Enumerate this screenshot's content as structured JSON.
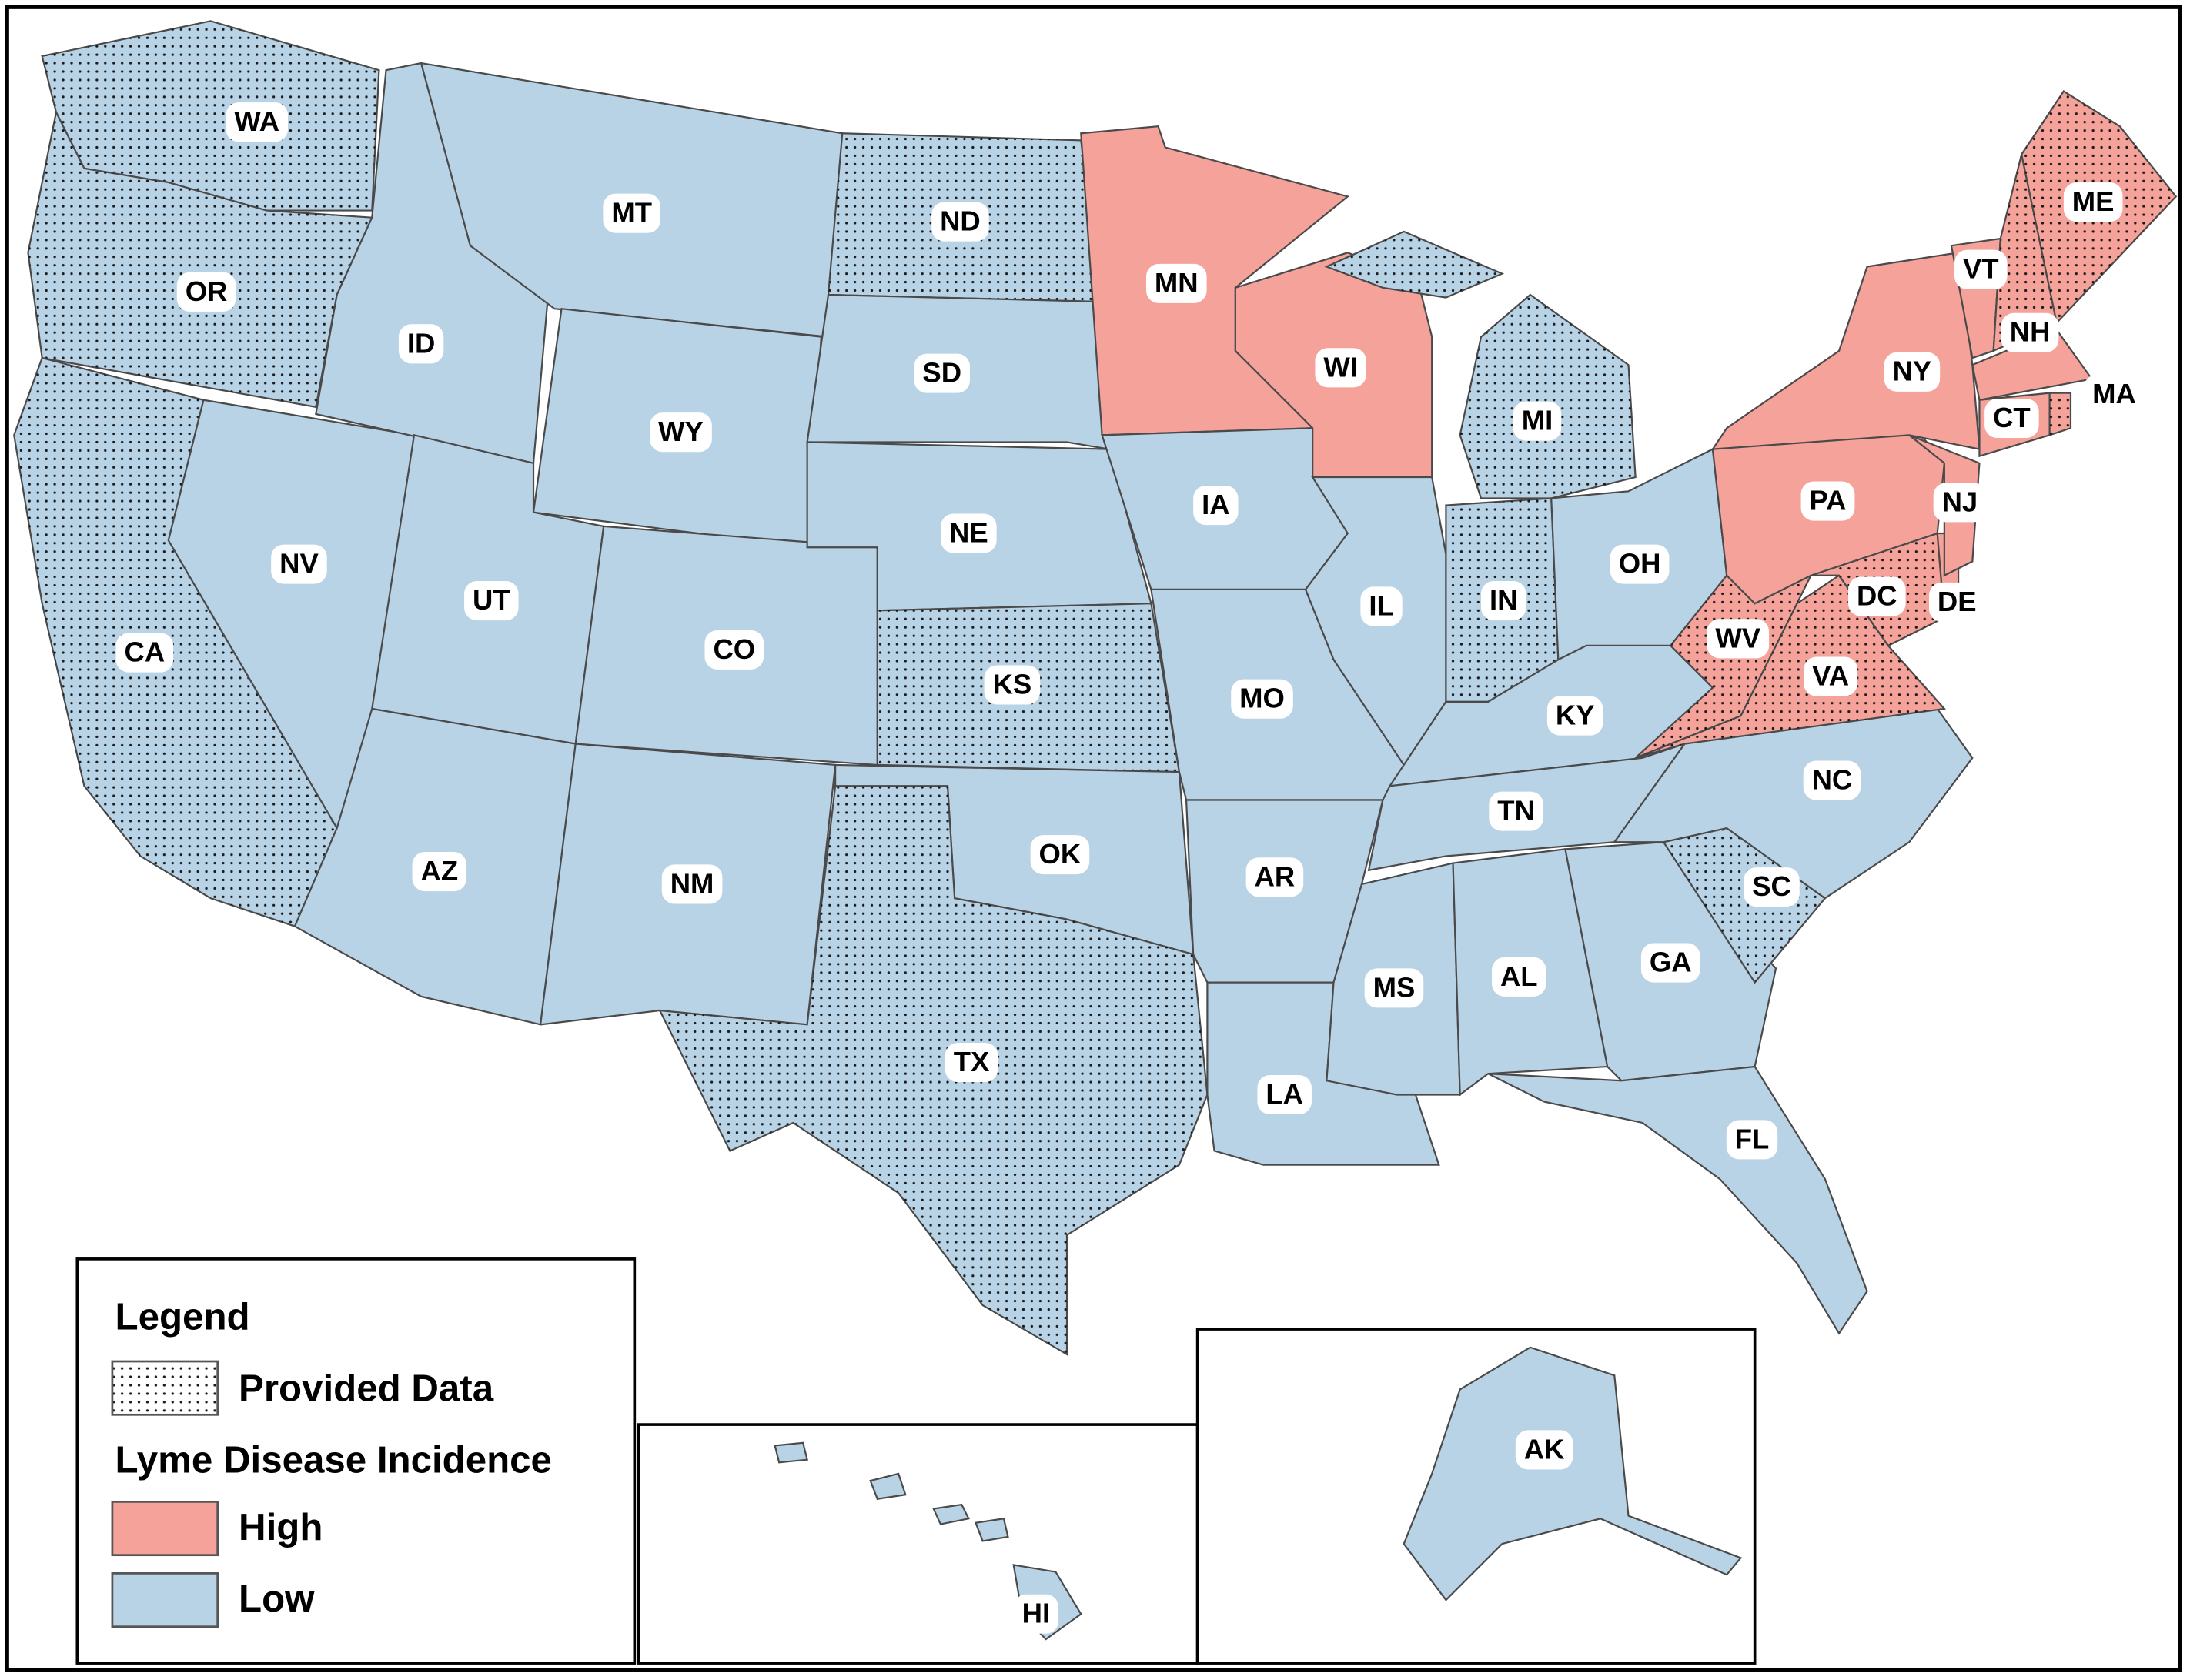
{
  "legend": {
    "title": "Legend",
    "pattern_label": "Provided Data",
    "incidence_title": "Lyme Disease Incidence",
    "categories": [
      {
        "label": "High",
        "color": "#f4a29a"
      },
      {
        "label": "Low",
        "color": "#b9d3e6"
      }
    ]
  },
  "states": [
    {
      "label": "WA",
      "incidence": "Low",
      "provided": true
    },
    {
      "label": "OR",
      "incidence": "Low",
      "provided": true
    },
    {
      "label": "CA",
      "incidence": "Low",
      "provided": true
    },
    {
      "label": "NV",
      "incidence": "Low",
      "provided": false
    },
    {
      "label": "ID",
      "incidence": "Low",
      "provided": false
    },
    {
      "label": "MT",
      "incidence": "Low",
      "provided": false
    },
    {
      "label": "WY",
      "incidence": "Low",
      "provided": false
    },
    {
      "label": "UT",
      "incidence": "Low",
      "provided": false
    },
    {
      "label": "CO",
      "incidence": "Low",
      "provided": false
    },
    {
      "label": "AZ",
      "incidence": "Low",
      "provided": false
    },
    {
      "label": "NM",
      "incidence": "Low",
      "provided": false
    },
    {
      "label": "ND",
      "incidence": "Low",
      "provided": true
    },
    {
      "label": "SD",
      "incidence": "Low",
      "provided": false
    },
    {
      "label": "NE",
      "incidence": "Low",
      "provided": false
    },
    {
      "label": "KS",
      "incidence": "Low",
      "provided": true
    },
    {
      "label": "OK",
      "incidence": "Low",
      "provided": false
    },
    {
      "label": "TX",
      "incidence": "Low",
      "provided": true
    },
    {
      "label": "MN",
      "incidence": "High",
      "provided": false
    },
    {
      "label": "IA",
      "incidence": "Low",
      "provided": false
    },
    {
      "label": "MO",
      "incidence": "Low",
      "provided": false
    },
    {
      "label": "AR",
      "incidence": "Low",
      "provided": false
    },
    {
      "label": "LA",
      "incidence": "Low",
      "provided": false
    },
    {
      "label": "WI",
      "incidence": "High",
      "provided": false
    },
    {
      "label": "IL",
      "incidence": "Low",
      "provided": false
    },
    {
      "label": "IN",
      "incidence": "Low",
      "provided": true
    },
    {
      "label": "MI",
      "incidence": "Low",
      "provided": true
    },
    {
      "label": "OH",
      "incidence": "Low",
      "provided": false
    },
    {
      "label": "KY",
      "incidence": "Low",
      "provided": false
    },
    {
      "label": "TN",
      "incidence": "Low",
      "provided": false
    },
    {
      "label": "MS",
      "incidence": "Low",
      "provided": false
    },
    {
      "label": "AL",
      "incidence": "Low",
      "provided": false
    },
    {
      "label": "GA",
      "incidence": "Low",
      "provided": false
    },
    {
      "label": "FL",
      "incidence": "Low",
      "provided": false
    },
    {
      "label": "SC",
      "incidence": "Low",
      "provided": true
    },
    {
      "label": "NC",
      "incidence": "Low",
      "provided": false
    },
    {
      "label": "VA",
      "incidence": "High",
      "provided": true
    },
    {
      "label": "WV",
      "incidence": "High",
      "provided": true
    },
    {
      "label": "DC",
      "incidence": "High",
      "provided": true
    },
    {
      "label": "DE",
      "incidence": "High",
      "provided": false
    },
    {
      "label": "PA",
      "incidence": "High",
      "provided": false
    },
    {
      "label": "NJ",
      "incidence": "High",
      "provided": false
    },
    {
      "label": "NY",
      "incidence": "High",
      "provided": false
    },
    {
      "label": "VT",
      "incidence": "High",
      "provided": false
    },
    {
      "label": "NH",
      "incidence": "High",
      "provided": true
    },
    {
      "label": "ME",
      "incidence": "High",
      "provided": true
    },
    {
      "label": "MA",
      "incidence": "High",
      "provided": false
    },
    {
      "label": "CT",
      "incidence": "High",
      "provided": false
    },
    {
      "label": null,
      "incidence": "High",
      "provided": true
    },
    {
      "label": "HI",
      "incidence": "Low",
      "provided": false
    },
    {
      "label": "AK",
      "incidence": "Low",
      "provided": false
    }
  ]
}
